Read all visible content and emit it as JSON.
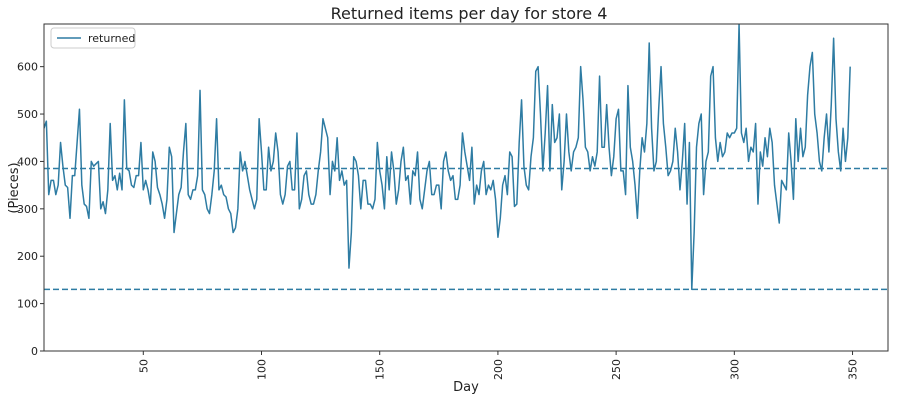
{
  "chart_data": {
    "type": "line",
    "title": "Returned items per day for store 4",
    "xlabel": "Day",
    "ylabel": "(Pieces)",
    "xlim": [
      8,
      365
    ],
    "ylim": [
      0,
      690
    ],
    "xticks": [
      50,
      100,
      150,
      200,
      250,
      300,
      350
    ],
    "yticks": [
      0,
      100,
      200,
      300,
      400,
      500,
      600
    ],
    "grid": false,
    "legend_position": "top-left",
    "series": [
      {
        "name": "returned",
        "color": "#2e7ca3",
        "x_start": 8,
        "x_step": 1,
        "values": [
          470,
          485,
          330,
          360,
          360,
          330,
          350,
          440,
          390,
          350,
          345,
          280,
          370,
          370,
          440,
          510,
          350,
          310,
          305,
          280,
          400,
          390,
          395,
          400,
          300,
          315,
          290,
          340,
          480,
          360,
          370,
          340,
          375,
          340,
          530,
          385,
          380,
          350,
          345,
          370,
          370,
          440,
          340,
          360,
          340,
          310,
          420,
          400,
          345,
          330,
          310,
          280,
          320,
          430,
          410,
          250,
          290,
          330,
          345,
          420,
          480,
          330,
          320,
          340,
          340,
          370,
          550,
          340,
          330,
          300,
          290,
          330,
          380,
          490,
          340,
          350,
          330,
          325,
          300,
          290,
          250,
          260,
          300,
          420,
          380,
          400,
          370,
          340,
          320,
          300,
          320,
          490,
          420,
          340,
          340,
          430,
          380,
          400,
          460,
          420,
          330,
          310,
          330,
          390,
          400,
          340,
          340,
          460,
          300,
          320,
          370,
          380,
          330,
          310,
          310,
          330,
          380,
          420,
          490,
          470,
          450,
          330,
          400,
          380,
          450,
          360,
          380,
          350,
          360,
          175,
          250,
          410,
          400,
          370,
          300,
          360,
          360,
          310,
          310,
          300,
          320,
          440,
          380,
          350,
          300,
          410,
          340,
          420,
          380,
          310,
          340,
          400,
          430,
          360,
          370,
          310,
          380,
          370,
          420,
          320,
          300,
          340,
          380,
          400,
          330,
          330,
          350,
          350,
          300,
          400,
          420,
          380,
          360,
          370,
          320,
          320,
          350,
          460,
          420,
          390,
          360,
          430,
          310,
          350,
          330,
          380,
          400,
          330,
          350,
          340,
          360,
          320,
          240,
          280,
          350,
          370,
          330,
          420,
          410,
          305,
          310,
          440,
          530,
          390,
          350,
          340,
          410,
          450,
          590,
          600,
          500,
          380,
          460,
          560,
          380,
          520,
          440,
          450,
          500,
          340,
          400,
          500,
          420,
          380,
          420,
          430,
          450,
          600,
          530,
          430,
          420,
          380,
          410,
          390,
          420,
          580,
          430,
          430,
          520,
          430,
          370,
          410,
          490,
          510,
          380,
          380,
          330,
          560,
          430,
          400,
          350,
          280,
          380,
          450,
          420,
          480,
          650,
          470,
          380,
          400,
          510,
          600,
          480,
          430,
          370,
          380,
          400,
          470,
          420,
          340,
          400,
          480,
          310,
          440,
          130,
          250,
          430,
          480,
          500,
          330,
          400,
          420,
          580,
          600,
          450,
          400,
          440,
          410,
          420,
          460,
          450,
          460,
          460,
          470,
          690,
          460,
          440,
          470,
          400,
          430,
          420,
          480,
          310,
          420,
          390,
          450,
          410,
          470,
          440,
          350,
          310,
          270,
          360,
          350,
          340,
          460,
          400,
          320,
          490,
          400,
          470,
          410,
          430,
          540,
          600,
          630,
          500,
          460,
          400,
          380,
          450,
          500,
          420,
          520,
          660,
          490,
          420,
          380,
          470,
          400,
          450,
          600
        ]
      }
    ],
    "hlines": [
      {
        "y": 385,
        "style": "dashed",
        "color": "#2e7ca3"
      },
      {
        "y": 130,
        "style": "dashed",
        "color": "#2e7ca3"
      }
    ]
  }
}
